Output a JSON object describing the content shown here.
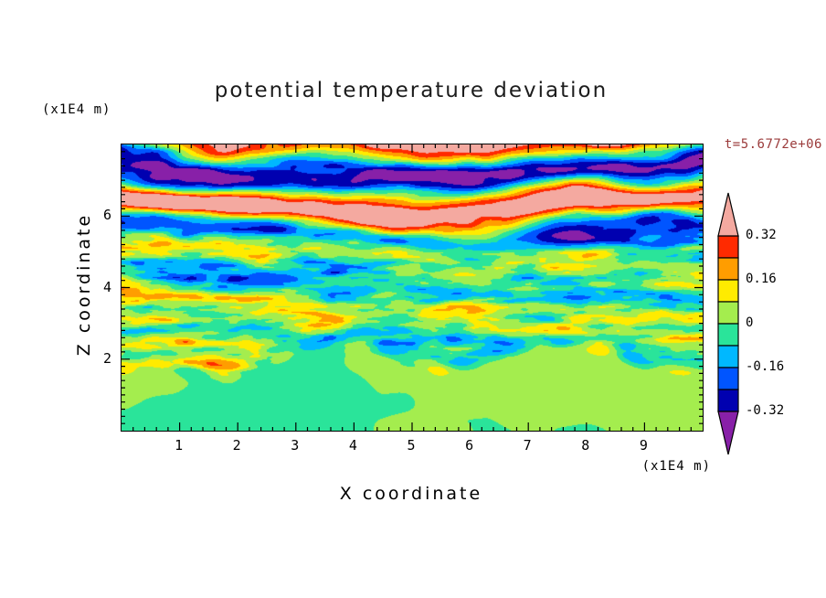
{
  "header": {
    "title": "potential temperature deviation",
    "time_label": "t=5.6772e+06"
  },
  "axes": {
    "x": {
      "label": "X coordinate",
      "unit": "(x1E4 m)",
      "range": [
        0,
        10
      ],
      "major_ticks": [
        1,
        2,
        3,
        4,
        5,
        6,
        7,
        8,
        9
      ],
      "minor_tick_interval": 0.2
    },
    "z": {
      "label": "Z coordinate",
      "unit": "(x1E4 m)",
      "range": [
        0,
        8
      ],
      "major_ticks": [
        2,
        4,
        6
      ],
      "minor_tick_interval": 0.2
    }
  },
  "colorbar": {
    "tick_labels": [
      "0.32",
      "0.16",
      "0",
      "-0.16",
      "-0.32"
    ],
    "tick_values": [
      0.32,
      0.16,
      0,
      -0.16,
      -0.32
    ]
  },
  "chart_data": {
    "type": "heatmap",
    "title": "potential temperature deviation",
    "xlabel": "X coordinate",
    "ylabel": "Z coordinate",
    "x_unit": "x1E4 m",
    "y_unit": "x1E4 m",
    "x_range": [
      0,
      10
    ],
    "y_range": [
      0,
      8
    ],
    "time": "t=5.6772e+06",
    "levels": [
      -0.32,
      -0.24,
      -0.16,
      -0.08,
      0,
      0.08,
      0.16,
      0.24,
      0.32
    ],
    "colors": [
      "#8820a8",
      "#0000b0",
      "#0055ff",
      "#00b8ff",
      "#2ae49a",
      "#a4ed4e",
      "#ffeb00",
      "#ff9d00",
      "#ff2a00",
      "#f4a9a0"
    ],
    "color_names": [
      "purple (< -0.32)",
      "navy (-0.32 to -0.24)",
      "blue (-0.24 to -0.16)",
      "sky blue (-0.16 to -0.08)",
      "spring green (-0.08 to 0)",
      "yellow-green (0 to 0.08)",
      "yellow (0.08 to 0.16)",
      "orange (0.16 to 0.24)",
      "red (0.24 to 0.32)",
      "salmon (> 0.32)"
    ],
    "field_structure": {
      "bottom_layer": {
        "z_range": [
          0,
          2
        ],
        "description": "smooth large convective blobs with deviation near zero: spring-green background with yellow-green plume tops and occasional sky-blue patches"
      },
      "middle_layer": {
        "z_range": [
          2,
          5.5
        ],
        "description": "fine horizontally-elongated turbulent streaks, deviations mostly within +/-0.3: greens and cyans with thin yellow, orange, red, blue and navy filaments"
      },
      "top_layer": {
        "z_range": [
          5.5,
          8
        ],
        "description": "strongly stratified horizontal bands alternating above +0.32 (salmon) and below -0.32 (purple), separated by thin red/orange and blue/navy transition lines"
      }
    }
  }
}
